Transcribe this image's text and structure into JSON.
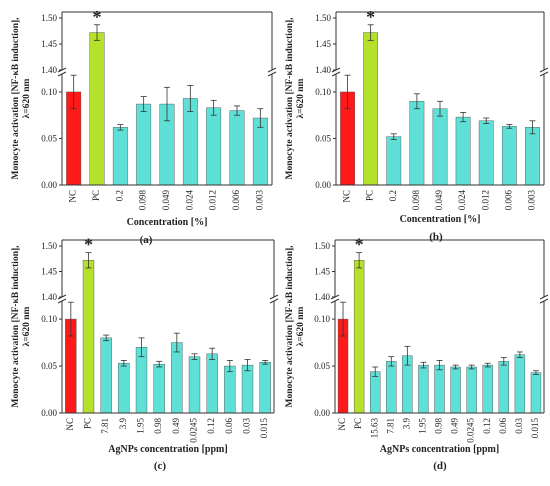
{
  "colors": {
    "nc": "#ff1a1a",
    "pc": "#b5e02b",
    "sample": "#5fe0d6",
    "axis": "#333333"
  },
  "chart_data": [
    {
      "type": "bar",
      "panel": "(a)",
      "ylabel": "Monocyte activation [NF-κB induction], λ=620 nm",
      "xlabel": "Concentration [%]",
      "categories": [
        "NC",
        "PC",
        "0.2",
        "0.098",
        "0.049",
        "0.024",
        "0.012",
        "0.006",
        "0.003"
      ],
      "values": [
        0.1,
        1.472,
        0.062,
        0.087,
        0.087,
        0.093,
        0.083,
        0.08,
        0.072
      ],
      "errors": [
        0.018,
        0.015,
        0.003,
        0.008,
        0.018,
        0.014,
        0.008,
        0.005,
        0.01
      ],
      "upper_ticks": [
        "1.40",
        "1.45",
        "1.50"
      ],
      "lower_ticks": [
        "0.00",
        "0.05",
        "0.10"
      ],
      "significance": {
        "category": "PC",
        "label": "*"
      }
    },
    {
      "type": "bar",
      "panel": "(b)",
      "ylabel": "Monocyte activation [NF-κB induction], λ=620 nm",
      "xlabel": "Concentration [%]",
      "categories": [
        "NC",
        "PC",
        "0.2",
        "0.098",
        "0.049",
        "0.024",
        "0.012",
        "0.006",
        "0.003"
      ],
      "values": [
        0.1,
        1.472,
        0.052,
        0.09,
        0.082,
        0.073,
        0.069,
        0.063,
        0.062
      ],
      "errors": [
        0.018,
        0.015,
        0.003,
        0.008,
        0.008,
        0.005,
        0.003,
        0.002,
        0.007
      ],
      "upper_ticks": [
        "1.40",
        "1.45",
        "1.50"
      ],
      "lower_ticks": [
        "0.00",
        "0.05",
        "0.10"
      ],
      "significance": {
        "category": "PC",
        "label": "*"
      }
    },
    {
      "type": "bar",
      "panel": "(c)",
      "ylabel": "Monocyte activation [NF-κB induction], λ=620 nm",
      "xlabel": "AgNPs concentration [ppm]",
      "categories": [
        "NC",
        "PC",
        "7.81",
        "3.9",
        "1.95",
        "0.98",
        "0.49",
        "0.0245",
        "0.12",
        "0.06",
        "0.03",
        "0.015"
      ],
      "values": [
        0.1,
        1.472,
        0.08,
        0.053,
        0.07,
        0.052,
        0.075,
        0.06,
        0.063,
        0.05,
        0.051,
        0.054
      ],
      "errors": [
        0.018,
        0.015,
        0.003,
        0.003,
        0.01,
        0.003,
        0.01,
        0.003,
        0.006,
        0.006,
        0.006,
        0.002
      ],
      "upper_ticks": [
        "1.40",
        "1.45",
        "1.50"
      ],
      "lower_ticks": [
        "0.00",
        "0.05",
        "0.10"
      ],
      "significance": {
        "category": "PC",
        "label": "*"
      }
    },
    {
      "type": "bar",
      "panel": "(d)",
      "ylabel": "Monocyte activation [NF-κB induction], λ=620 nm",
      "xlabel": "AgNPs concentration [ppm]",
      "categories": [
        "NC",
        "PC",
        "15.63",
        "7.81",
        "3.9",
        "1.95",
        "0.98",
        "0.49",
        "0.0245",
        "0.12",
        "0.06",
        "0.03",
        "0.015"
      ],
      "values": [
        0.1,
        1.472,
        0.044,
        0.055,
        0.061,
        0.051,
        0.051,
        0.049,
        0.049,
        0.051,
        0.055,
        0.062,
        0.043
      ],
      "errors": [
        0.018,
        0.015,
        0.005,
        0.005,
        0.01,
        0.003,
        0.005,
        0.002,
        0.002,
        0.002,
        0.004,
        0.003,
        0.002
      ],
      "upper_ticks": [
        "1.40",
        "1.45",
        "1.50"
      ],
      "lower_ticks": [
        "0.00",
        "0.05",
        "0.10"
      ],
      "significance": {
        "category": "PC",
        "label": "*"
      }
    }
  ]
}
